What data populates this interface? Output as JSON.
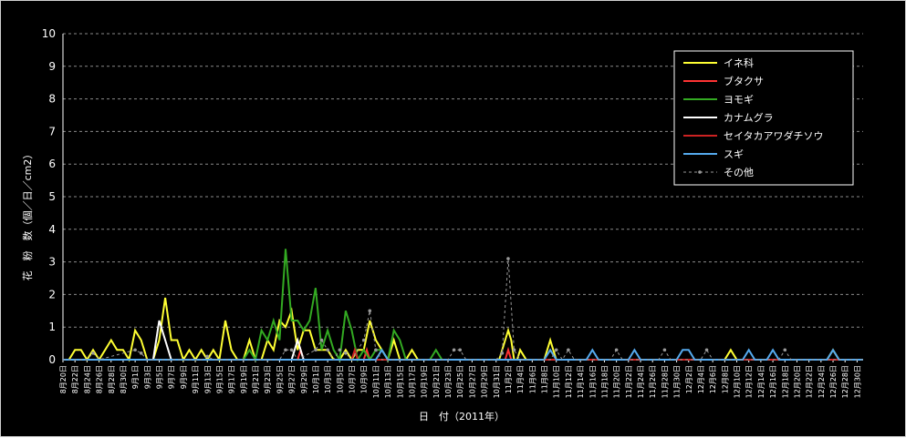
{
  "chart_data": {
    "type": "line",
    "xlabel": "日　付（2011年）",
    "ylabel": "花　粉　数（個／日／cm2）",
    "ylim": [
      0,
      10
    ],
    "yticks": [
      "0",
      "1",
      "2",
      "3",
      "4",
      "5",
      "6",
      "7",
      "8",
      "9",
      "10"
    ],
    "grid": "horizontal-dashed",
    "legend_position": "top-right",
    "xtick_labels": [
      "8月20日",
      "8月22日",
      "8月24日",
      "8月26日",
      "8月28日",
      "8月30日",
      "9月1日",
      "9月3日",
      "9月5日",
      "9月7日",
      "9月9日",
      "9月11日",
      "9月13日",
      "9月15日",
      "9月17日",
      "9月19日",
      "9月21日",
      "9月23日",
      "9月25日",
      "9月27日",
      "9月29日",
      "10月1日",
      "10月3日",
      "10月5日",
      "10月7日",
      "10月9日",
      "10月11日",
      "10月13日",
      "10月15日",
      "10月17日",
      "10月19日",
      "10月21日",
      "10月23日",
      "10月25日",
      "10月27日",
      "10月29日",
      "10月31日",
      "11月2日",
      "11月4日",
      "11月6日",
      "11月8日",
      "11月10日",
      "11月12日",
      "11月14日",
      "11月16日",
      "11月18日",
      "11月20日",
      "11月22日",
      "11月24日",
      "11月26日",
      "11月28日",
      "11月30日",
      "12月2日",
      "12月4日",
      "12月6日",
      "12月8日",
      "12月10日",
      "12月12日",
      "12月14日",
      "12月16日",
      "12月18日",
      "12月20日",
      "12月22日",
      "12月24日",
      "12月26日",
      "12月28日",
      "12月30日"
    ],
    "x_days_note": "",
    "series": [
      {
        "name": "イネ科",
        "color": "#ffff33",
        "dash": false,
        "points": [
          [
            0,
            0
          ],
          [
            2,
            0
          ],
          [
            4,
            0.3
          ],
          [
            6,
            0.3
          ],
          [
            8,
            0
          ],
          [
            10,
            0.3
          ],
          [
            12,
            0
          ],
          [
            14,
            0.3
          ],
          [
            16,
            0.6
          ],
          [
            18,
            0.3
          ],
          [
            20,
            0.3
          ],
          [
            22,
            0
          ],
          [
            24,
            0.9
          ],
          [
            26,
            0.6
          ],
          [
            28,
            0
          ],
          [
            30,
            0
          ],
          [
            32,
            0.6
          ],
          [
            34,
            1.9
          ],
          [
            36,
            0.6
          ],
          [
            38,
            0.6
          ],
          [
            40,
            0
          ],
          [
            42,
            0.3
          ],
          [
            44,
            0
          ],
          [
            46,
            0.3
          ],
          [
            48,
            0
          ],
          [
            50,
            0.3
          ],
          [
            52,
            0
          ],
          [
            54,
            1.2
          ],
          [
            56,
            0.3
          ],
          [
            58,
            0
          ],
          [
            60,
            0
          ],
          [
            62,
            0.6
          ],
          [
            64,
            0
          ],
          [
            66,
            0
          ],
          [
            68,
            0.6
          ],
          [
            70,
            0.3
          ],
          [
            72,
            1.2
          ],
          [
            74,
            1.0
          ],
          [
            76,
            1.5
          ],
          [
            78,
            0.3
          ],
          [
            80,
            0.9
          ],
          [
            82,
            0.9
          ],
          [
            84,
            0.3
          ],
          [
            86,
            0.3
          ],
          [
            88,
            0.3
          ],
          [
            90,
            0
          ],
          [
            92,
            0
          ],
          [
            94,
            0.3
          ],
          [
            96,
            0
          ],
          [
            98,
            0.3
          ],
          [
            100,
            0.3
          ],
          [
            102,
            1.2
          ],
          [
            104,
            0.6
          ],
          [
            106,
            0.3
          ],
          [
            108,
            0
          ],
          [
            110,
            0.6
          ],
          [
            112,
            0
          ],
          [
            114,
            0
          ],
          [
            116,
            0.3
          ],
          [
            118,
            0
          ],
          [
            120,
            0
          ],
          [
            122,
            0
          ],
          [
            124,
            0
          ],
          [
            126,
            0
          ],
          [
            128,
            0
          ],
          [
            130,
            0
          ],
          [
            132,
            0
          ],
          [
            134,
            0
          ],
          [
            136,
            0
          ],
          [
            138,
            0
          ],
          [
            140,
            0
          ],
          [
            142,
            0
          ],
          [
            144,
            0
          ],
          [
            145,
            0
          ],
          [
            146,
            0.3
          ],
          [
            147,
            0.6
          ],
          [
            148,
            0.9
          ],
          [
            149,
            0.6
          ],
          [
            150,
            0
          ],
          [
            151,
            0
          ],
          [
            152,
            0.3
          ],
          [
            154,
            0
          ],
          [
            160,
            0
          ],
          [
            162,
            0.6
          ],
          [
            164,
            0
          ],
          [
            220,
            0
          ],
          [
            222,
            0.3
          ],
          [
            224,
            0
          ],
          [
            254,
            0
          ],
          [
            256,
            0.3
          ],
          [
            258,
            0
          ],
          [
            266,
            0
          ]
        ]
      },
      {
        "name": "ブタクサ",
        "color": "#ff3333",
        "dash": false,
        "points": [
          [
            0,
            0
          ],
          [
            78,
            0
          ],
          [
            79,
            0.3
          ],
          [
            80,
            0
          ],
          [
            100,
            0
          ],
          [
            101,
            0.3
          ],
          [
            102,
            0
          ],
          [
            147,
            0
          ],
          [
            148,
            0.3
          ],
          [
            149,
            0
          ],
          [
            266,
            0
          ]
        ]
      },
      {
        "name": "ヨモギ",
        "color": "#33aa22",
        "dash": false,
        "points": [
          [
            0,
            0
          ],
          [
            56,
            0
          ],
          [
            58,
            0
          ],
          [
            60,
            0
          ],
          [
            62,
            0.3
          ],
          [
            64,
            0
          ],
          [
            66,
            0.9
          ],
          [
            68,
            0.6
          ],
          [
            70,
            1.2
          ],
          [
            72,
            0.6
          ],
          [
            74,
            3.4
          ],
          [
            76,
            1.2
          ],
          [
            78,
            1.2
          ],
          [
            80,
            0.9
          ],
          [
            82,
            1.2
          ],
          [
            84,
            2.2
          ],
          [
            86,
            0.3
          ],
          [
            88,
            0.9
          ],
          [
            90,
            0.3
          ],
          [
            92,
            0
          ],
          [
            94,
            1.5
          ],
          [
            96,
            0.9
          ],
          [
            98,
            0
          ],
          [
            100,
            0.3
          ],
          [
            102,
            0
          ],
          [
            104,
            0.3
          ],
          [
            106,
            0.3
          ],
          [
            108,
            0
          ],
          [
            110,
            0.9
          ],
          [
            112,
            0.6
          ],
          [
            114,
            0
          ],
          [
            120,
            0
          ],
          [
            122,
            0
          ],
          [
            124,
            0.3
          ],
          [
            126,
            0
          ],
          [
            266,
            0
          ]
        ]
      },
      {
        "name": "カナムグラ",
        "color": "#ffffff",
        "dash": false,
        "points": [
          [
            0,
            0
          ],
          [
            28,
            0
          ],
          [
            30,
            0
          ],
          [
            32,
            1.2
          ],
          [
            34,
            0.6
          ],
          [
            36,
            0
          ],
          [
            38,
            0
          ],
          [
            74,
            0
          ],
          [
            76,
            0
          ],
          [
            77,
            0.3
          ],
          [
            78,
            0.6
          ],
          [
            79,
            0.3
          ],
          [
            80,
            0
          ],
          [
            266,
            0
          ]
        ]
      },
      {
        "name": "セイタカアワダチソウ",
        "color": "#cc2222",
        "dash": false,
        "points": [
          [
            0,
            0
          ],
          [
            96,
            0
          ],
          [
            97,
            0.3
          ],
          [
            98,
            0
          ],
          [
            266,
            0
          ]
        ]
      },
      {
        "name": "スギ",
        "color": "#55aaee",
        "dash": false,
        "points": [
          [
            0,
            0
          ],
          [
            104,
            0
          ],
          [
            106,
            0.3
          ],
          [
            108,
            0
          ],
          [
            160,
            0
          ],
          [
            162,
            0.3
          ],
          [
            164,
            0
          ],
          [
            174,
            0
          ],
          [
            176,
            0.3
          ],
          [
            178,
            0
          ],
          [
            188,
            0
          ],
          [
            190,
            0.3
          ],
          [
            192,
            0
          ],
          [
            204,
            0
          ],
          [
            206,
            0.3
          ],
          [
            208,
            0.3
          ],
          [
            210,
            0
          ],
          [
            226,
            0
          ],
          [
            228,
            0.3
          ],
          [
            230,
            0
          ],
          [
            234,
            0
          ],
          [
            236,
            0.3
          ],
          [
            238,
            0
          ],
          [
            254,
            0
          ],
          [
            256,
            0.3
          ],
          [
            258,
            0
          ],
          [
            266,
            0
          ]
        ]
      },
      {
        "name": "その他",
        "color": "#999999",
        "dash": true,
        "points": [
          [
            0,
            0
          ],
          [
            8,
            0
          ],
          [
            10,
            0.2
          ],
          [
            12,
            0
          ],
          [
            24,
            0.3
          ],
          [
            26,
            0.2
          ],
          [
            28,
            0
          ],
          [
            46,
            0
          ],
          [
            48,
            0.1
          ],
          [
            50,
            0
          ],
          [
            72,
            0
          ],
          [
            74,
            0.3
          ],
          [
            76,
            0.3
          ],
          [
            78,
            0
          ],
          [
            84,
            0.3
          ],
          [
            86,
            0.6
          ],
          [
            88,
            0.3
          ],
          [
            90,
            0
          ],
          [
            92,
            0.3
          ],
          [
            94,
            0.2
          ],
          [
            96,
            0
          ],
          [
            100,
            0.6
          ],
          [
            102,
            1.5
          ],
          [
            104,
            0.3
          ],
          [
            106,
            0
          ],
          [
            118,
            0
          ],
          [
            120,
            0
          ],
          [
            128,
            0
          ],
          [
            130,
            0.3
          ],
          [
            132,
            0.3
          ],
          [
            134,
            0
          ],
          [
            144,
            0
          ],
          [
            146,
            0.2
          ],
          [
            148,
            3.1
          ],
          [
            150,
            0.3
          ],
          [
            152,
            0
          ],
          [
            162,
            0
          ],
          [
            164,
            0.3
          ],
          [
            166,
            0
          ],
          [
            168,
            0.3
          ],
          [
            170,
            0
          ],
          [
            182,
            0
          ],
          [
            184,
            0.3
          ],
          [
            186,
            0
          ],
          [
            198,
            0
          ],
          [
            200,
            0.3
          ],
          [
            202,
            0
          ],
          [
            212,
            0
          ],
          [
            214,
            0.3
          ],
          [
            216,
            0
          ],
          [
            238,
            0
          ],
          [
            240,
            0.3
          ],
          [
            242,
            0
          ],
          [
            266,
            0
          ]
        ]
      }
    ]
  }
}
